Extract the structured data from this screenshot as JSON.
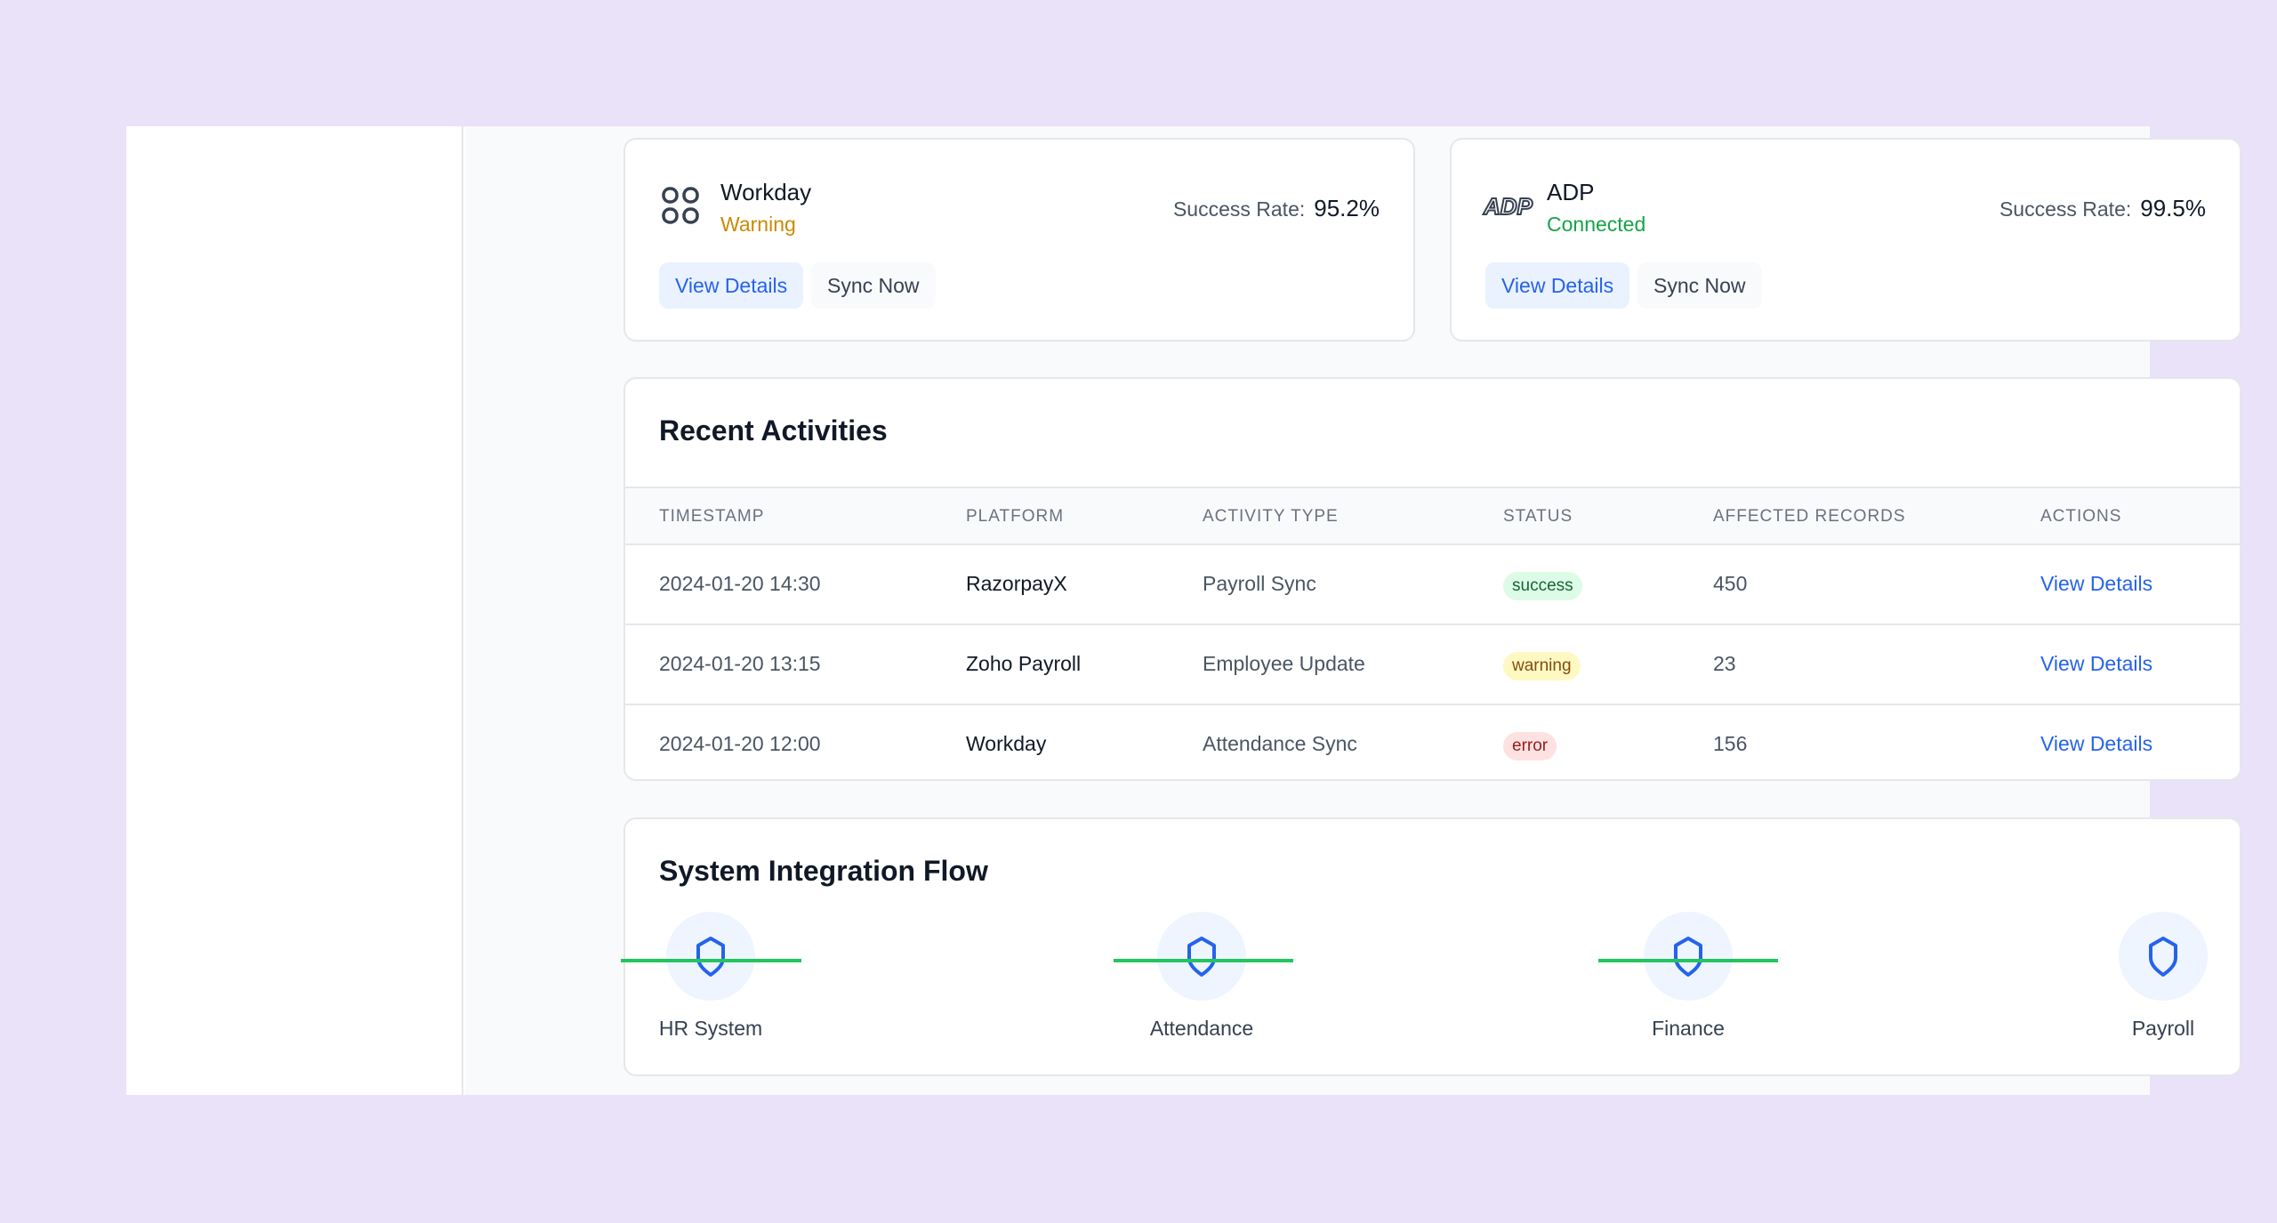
{
  "platforms": [
    {
      "name": "Workday",
      "status": "Warning",
      "status_color": "#ca8a04",
      "icon": "grid-icon",
      "rate_label": "Success Rate:",
      "rate": "95.2%",
      "view": "View Details",
      "sync": "Sync Now"
    },
    {
      "name": "ADP",
      "status": "Connected",
      "status_color": "#16a34a",
      "icon": "adp-logo",
      "rate_label": "Success Rate:",
      "rate": "99.5%",
      "view": "View Details",
      "sync": "Sync Now"
    }
  ],
  "activities": {
    "title": "Recent Activities",
    "columns": [
      "TIMESTAMP",
      "PLATFORM",
      "ACTIVITY TYPE",
      "STATUS",
      "AFFECTED RECORDS",
      "ACTIONS"
    ],
    "rows": [
      {
        "timestamp": "2024-01-20 14:30",
        "platform": "RazorpayX",
        "type": "Payroll Sync",
        "status": "success",
        "records": "450",
        "action": "View Details"
      },
      {
        "timestamp": "2024-01-20 13:15",
        "platform": "Zoho Payroll",
        "type": "Employee Update",
        "status": "warning",
        "records": "23",
        "action": "View Details"
      },
      {
        "timestamp": "2024-01-20 12:00",
        "platform": "Workday",
        "type": "Attendance Sync",
        "status": "error",
        "records": "156",
        "action": "View Details"
      }
    ]
  },
  "flow": {
    "title": "System Integration Flow",
    "nodes": [
      {
        "label": "HR System",
        "icon": "shield-icon"
      },
      {
        "label": "Attendance",
        "icon": "shield-icon"
      },
      {
        "label": "Finance",
        "icon": "shield-icon"
      },
      {
        "label": "Payroll",
        "icon": "shield-icon"
      }
    ]
  },
  "colors": {
    "accent": "#2563eb",
    "connector": "#22c55e",
    "background": "#e9e2f8"
  }
}
